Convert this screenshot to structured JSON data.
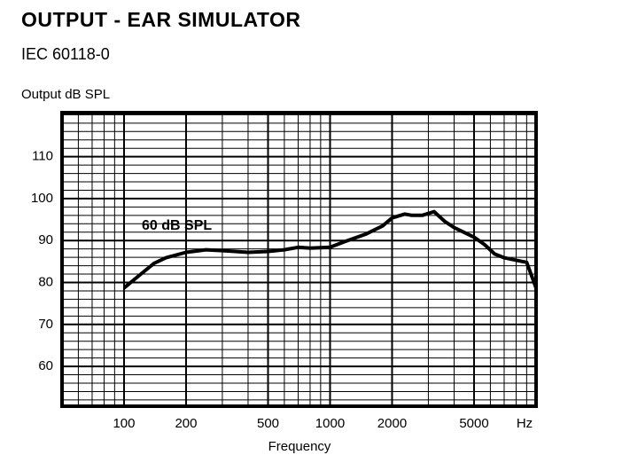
{
  "chart_data": {
    "type": "line",
    "title": "OUTPUT - EAR SIMULATOR",
    "subtitle": "IEC 60118-0",
    "y_label": "Output dB SPL",
    "x_label": "Frequency",
    "x_unit": "Hz",
    "annotation": "60 dB SPL",
    "x_scale": "log",
    "grid": true,
    "xlim": [
      50,
      10000
    ],
    "xticks": [
      100,
      200,
      500,
      1000,
      2000,
      5000
    ],
    "ylim": [
      50.5,
      120.5
    ],
    "yticks": [
      60,
      70,
      80,
      90,
      100,
      110
    ],
    "x": [
      100,
      120,
      140,
      160,
      200,
      250,
      300,
      400,
      500,
      600,
      700,
      800,
      1000,
      1200,
      1500,
      1800,
      2000,
      2300,
      2500,
      2800,
      3200,
      3600,
      4000,
      5000,
      5600,
      6300,
      7000,
      8000,
      9000,
      10000
    ],
    "series": [
      {
        "name": "60 dB SPL",
        "color": "#000000",
        "values": [
          78.7,
          81.9,
          84.6,
          85.9,
          87.2,
          87.8,
          87.6,
          87.2,
          87.4,
          87.8,
          88.4,
          88.2,
          88.4,
          89.9,
          91.6,
          93.5,
          95.4,
          96.3,
          96.0,
          96.0,
          96.9,
          94.6,
          93.1,
          90.8,
          89.1,
          86.8,
          85.9,
          85.3,
          84.8,
          78.7
        ]
      }
    ]
  }
}
